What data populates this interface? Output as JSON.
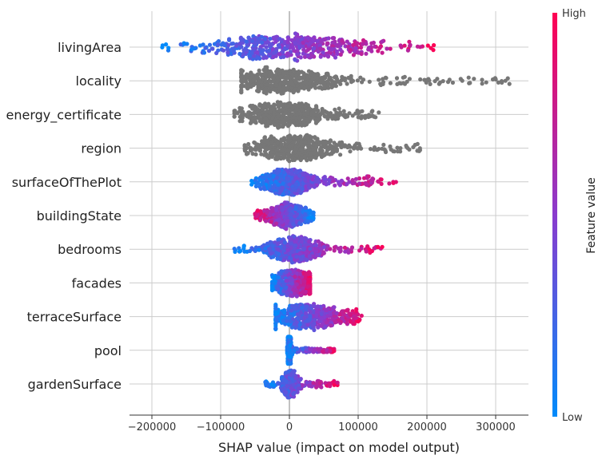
{
  "chart_data": {
    "type": "scatter",
    "subtype": "shap-beeswarm",
    "xlabel": "SHAP value (impact on model output)",
    "xlim": [
      -205000,
      345000
    ],
    "x_ticks": [
      -200000,
      -100000,
      0,
      100000,
      200000,
      300000
    ],
    "x_tick_labels": [
      "−200000",
      "−100000",
      "0",
      "100000",
      "200000",
      "300000"
    ],
    "grid": true,
    "colorbar": {
      "title": "Feature value",
      "high_label": "High",
      "low_label": "Low",
      "low_color": "#008bfb",
      "mid_color": "#8a3bce",
      "high_color": "#ff0052"
    },
    "no_value_color": "#777777",
    "features": [
      {
        "name": "livingArea",
        "min": -185000,
        "max": 210000,
        "q1": -60000,
        "q3": 55000,
        "colored": true,
        "corr": 1
      },
      {
        "name": "locality",
        "min": -70000,
        "max": 320000,
        "q1": -50000,
        "q3": 35000,
        "colored": false
      },
      {
        "name": "energy_certificate",
        "min": -80000,
        "max": 130000,
        "q1": -45000,
        "q3": 25000,
        "colored": false
      },
      {
        "name": "region",
        "min": -65000,
        "max": 190000,
        "q1": -30000,
        "q3": 40000,
        "colored": false
      },
      {
        "name": "surfaceOfThePlot",
        "min": -55000,
        "max": 155000,
        "q1": -25000,
        "q3": 20000,
        "colored": true,
        "corr": 1
      },
      {
        "name": "buildingState",
        "min": -50000,
        "max": 35000,
        "q1": -20000,
        "q3": 15000,
        "colored": true,
        "corr": -1
      },
      {
        "name": "bedrooms",
        "min": -80000,
        "max": 135000,
        "q1": -15000,
        "q3": 30000,
        "colored": true,
        "corr": 1
      },
      {
        "name": "facades",
        "min": -25000,
        "max": 30000,
        "q1": -12000,
        "q3": 22000,
        "colored": true,
        "corr": 1
      },
      {
        "name": "terraceSurface",
        "min": -20000,
        "max": 105000,
        "q1": -5000,
        "q3": 60000,
        "colored": true,
        "corr": 1
      },
      {
        "name": "pool",
        "min": -3000,
        "max": 65000,
        "q1": -2000,
        "q3": 2000,
        "colored": true,
        "corr": 1
      },
      {
        "name": "gardenSurface",
        "min": -35000,
        "max": 70000,
        "q1": -5000,
        "q3": 8000,
        "colored": true,
        "corr": 1
      }
    ]
  }
}
